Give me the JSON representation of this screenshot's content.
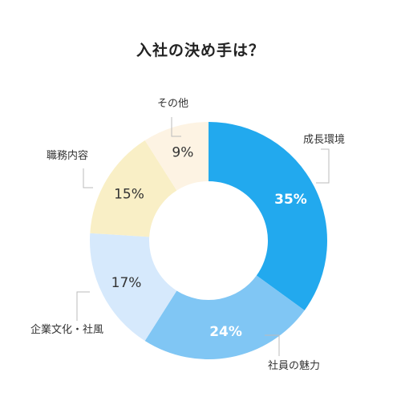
{
  "chart_data": {
    "type": "pie",
    "title": "入社の決め手は？",
    "categories": [
      "成長環境",
      "社員の魅力",
      "企業文化・社風",
      "職務内容",
      "その他"
    ],
    "values": [
      35,
      24,
      17,
      15,
      9
    ],
    "value_labels": [
      "35%",
      "24%",
      "17%",
      "15%",
      "9%"
    ],
    "colors": [
      "#22a9ee",
      "#80c6f4",
      "#d6e9fc",
      "#f9efc6",
      "#fdf3e3"
    ],
    "label_colors": [
      "#ffffff",
      "#ffffff",
      "#333333",
      "#333333",
      "#333333"
    ],
    "donut": true,
    "start_angle_deg": 0,
    "direction": "clockwise"
  }
}
